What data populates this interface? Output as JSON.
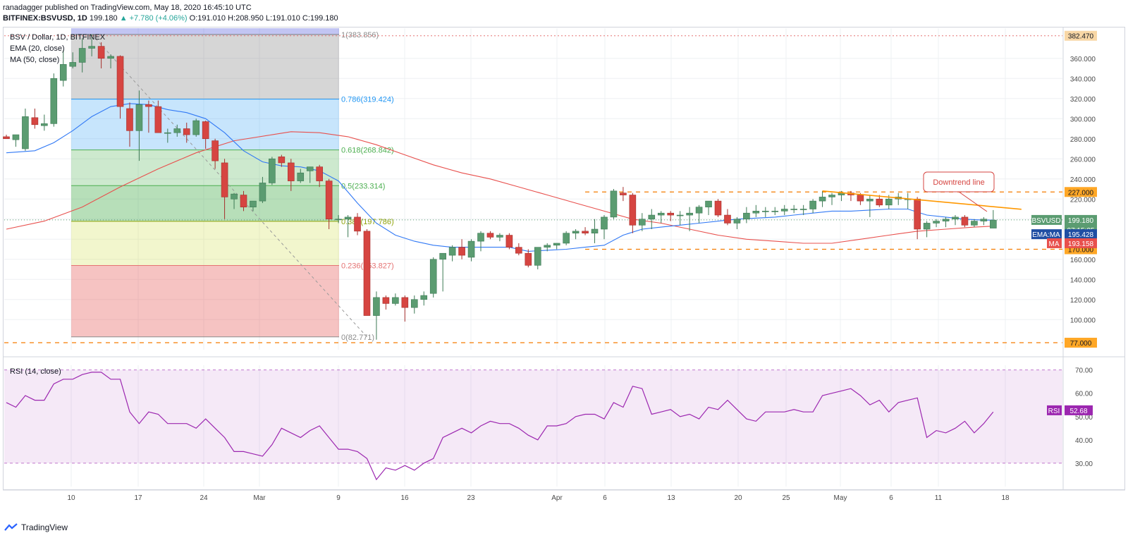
{
  "header": {
    "line1": "ranadagger published on TradingView.com, May 18, 2020 16:45:10 UTC",
    "symbol": "BITFINEX:BSVUSD, 1D",
    "close_val": "199.180",
    "change": "▲ +7.780 (+4.06%)",
    "ohlc": "O:191.010 H:208.950 L:191.010 C:199.180"
  },
  "legend": {
    "title": "BSV / Dollar, 1D, BITFINEX",
    "ema": "EMA (20, close)",
    "ma": "MA (50, close)",
    "rsi": "RSI (14, close)"
  },
  "annotation": "Downtrend line",
  "footer": {
    "brand": "TradingView"
  },
  "colors": {
    "up": "#5b9c71",
    "down": "#d64541",
    "ema": "#3179f5",
    "ma": "#e8504d",
    "trendline": "#ff9800",
    "support": "#f57c00",
    "rsi": "#9c27b0",
    "fib_gray": "#a6a6a6",
    "fib_blue": "#2196f3"
  },
  "chart_data": {
    "type": "candlestick",
    "price_axis": {
      "min": 70,
      "max": 390,
      "ticks": [
        100,
        120,
        140,
        160,
        180,
        200,
        220,
        240,
        260,
        280,
        300,
        320,
        340,
        360
      ]
    },
    "date_ticks": [
      "10",
      "17",
      "24",
      "Mar",
      "9",
      "16",
      "23",
      "Apr",
      "6",
      "13",
      "20",
      "25",
      "May",
      "6",
      "11",
      "18"
    ],
    "fibonacci": [
      {
        "label": "1(383.856)",
        "value": 383.856
      },
      {
        "label": "0.786(319.424)",
        "value": 319.424
      },
      {
        "label": "0.618(268.842)",
        "value": 268.842
      },
      {
        "label": "0.5(233.314)",
        "value": 233.314
      },
      {
        "label": "0.382(197.786)",
        "value": 197.786
      },
      {
        "label": "0.236(153.827)",
        "value": 153.827
      },
      {
        "label": "0(82.771)",
        "value": 82.771
      }
    ],
    "levels": [
      {
        "label": "382.470",
        "value": 382.47
      },
      {
        "label": "227.000",
        "value": 227
      },
      {
        "label": "170.000",
        "value": 170
      },
      {
        "label": "77.000",
        "value": 77
      }
    ],
    "price_labels": {
      "symbol": "BSVUSD",
      "last": "199.180",
      "countdown": "07:15:05",
      "ema_tag": "EMA:MA",
      "ema_value": "195.428",
      "ma_tag": "MA",
      "ma_value": "193.158"
    },
    "candles": [
      [
        0,
        282,
        284,
        280,
        280
      ],
      [
        1,
        279,
        282,
        272,
        284
      ],
      [
        2,
        270,
        310,
        268,
        302
      ],
      [
        3,
        301,
        310,
        290,
        294
      ],
      [
        4,
        293,
        304,
        288,
        295
      ],
      [
        5,
        295,
        345,
        292,
        340
      ],
      [
        6,
        338,
        368,
        332,
        354
      ],
      [
        7,
        352,
        366,
        350,
        356
      ],
      [
        8,
        356,
        380,
        346,
        370
      ],
      [
        9,
        370,
        384,
        362,
        372
      ],
      [
        10,
        372,
        376,
        350,
        360
      ],
      [
        11,
        360,
        364,
        350,
        362
      ],
      [
        12,
        362,
        363,
        300,
        312
      ],
      [
        13,
        310,
        316,
        272,
        288
      ],
      [
        14,
        288,
        328,
        258,
        314
      ],
      [
        15,
        314,
        318,
        286,
        312
      ],
      [
        16,
        312,
        318,
        288,
        286
      ],
      [
        17,
        286,
        290,
        276,
        286
      ],
      [
        18,
        286,
        294,
        282,
        290
      ],
      [
        19,
        290,
        296,
        276,
        284
      ],
      [
        20,
        284,
        300,
        282,
        298
      ],
      [
        21,
        297,
        298,
        270,
        280
      ],
      [
        22,
        278,
        280,
        250,
        258
      ],
      [
        23,
        256,
        260,
        200,
        222
      ],
      [
        24,
        220,
        226,
        210,
        225
      ],
      [
        25,
        224,
        228,
        208,
        212
      ],
      [
        26,
        212,
        218,
        208,
        218
      ],
      [
        27,
        218,
        242,
        216,
        236
      ],
      [
        28,
        236,
        262,
        234,
        260
      ],
      [
        29,
        262,
        264,
        252,
        256
      ],
      [
        30,
        256,
        260,
        228,
        238
      ],
      [
        31,
        238,
        250,
        236,
        246
      ],
      [
        32,
        248,
        252,
        236,
        252
      ],
      [
        33,
        252,
        254,
        232,
        238
      ],
      [
        34,
        238,
        240,
        190,
        200
      ],
      [
        35,
        200,
        204,
        196,
        200
      ],
      [
        36,
        200,
        204,
        182,
        202
      ],
      [
        37,
        202,
        206,
        184,
        188
      ],
      [
        38,
        188,
        190,
        104,
        104
      ],
      [
        39,
        104,
        128,
        80,
        122
      ],
      [
        40,
        122,
        124,
        110,
        116
      ],
      [
        41,
        116,
        126,
        114,
        122
      ],
      [
        42,
        122,
        124,
        98,
        112
      ],
      [
        43,
        112,
        124,
        106,
        120
      ],
      [
        44,
        120,
        128,
        114,
        124
      ],
      [
        45,
        126,
        162,
        122,
        160
      ],
      [
        46,
        160,
        164,
        128,
        166
      ],
      [
        47,
        164,
        174,
        158,
        172
      ],
      [
        48,
        172,
        180,
        160,
        164
      ],
      [
        49,
        162,
        180,
        158,
        178
      ],
      [
        50,
        178,
        188,
        168,
        186
      ],
      [
        51,
        186,
        188,
        180,
        182
      ],
      [
        52,
        182,
        186,
        178,
        184
      ],
      [
        53,
        184,
        186,
        170,
        172
      ],
      [
        54,
        172,
        176,
        164,
        166
      ],
      [
        55,
        166,
        170,
        152,
        154
      ],
      [
        56,
        154,
        170,
        150,
        172
      ],
      [
        57,
        172,
        176,
        168,
        174
      ],
      [
        58,
        174,
        176,
        170,
        176
      ],
      [
        59,
        176,
        188,
        174,
        186
      ],
      [
        60,
        186,
        190,
        180,
        188
      ],
      [
        61,
        188,
        192,
        184,
        186
      ],
      [
        62,
        186,
        200,
        176,
        190
      ],
      [
        63,
        190,
        204,
        180,
        202
      ],
      [
        64,
        202,
        230,
        200,
        228
      ],
      [
        65,
        226,
        232,
        218,
        224
      ],
      [
        66,
        224,
        226,
        186,
        194
      ],
      [
        67,
        194,
        206,
        188,
        200
      ],
      [
        68,
        200,
        210,
        190,
        204
      ],
      [
        69,
        204,
        208,
        196,
        206
      ],
      [
        70,
        206,
        208,
        198,
        204
      ],
      [
        71,
        204,
        208,
        194,
        204
      ],
      [
        72,
        204,
        212,
        188,
        206
      ],
      [
        73,
        206,
        214,
        196,
        212
      ],
      [
        74,
        212,
        218,
        204,
        218
      ],
      [
        75,
        218,
        220,
        202,
        204
      ],
      [
        76,
        204,
        210,
        194,
        196
      ],
      [
        77,
        196,
        202,
        190,
        200
      ],
      [
        78,
        200,
        212,
        196,
        206
      ],
      [
        79,
        206,
        214,
        202,
        208
      ],
      [
        80,
        208,
        212,
        202,
        208
      ],
      [
        81,
        208,
        212,
        204,
        208
      ],
      [
        82,
        208,
        214,
        204,
        210
      ],
      [
        83,
        210,
        214,
        206,
        210
      ],
      [
        84,
        210,
        214,
        204,
        210
      ],
      [
        85,
        210,
        220,
        206,
        218
      ],
      [
        86,
        218,
        228,
        212,
        222
      ],
      [
        87,
        222,
        226,
        214,
        224
      ],
      [
        88,
        224,
        228,
        218,
        226
      ],
      [
        89,
        226,
        228,
        218,
        224
      ],
      [
        90,
        224,
        226,
        214,
        218
      ],
      [
        91,
        218,
        224,
        202,
        220
      ],
      [
        92,
        220,
        224,
        212,
        214
      ],
      [
        93,
        214,
        224,
        210,
        220
      ],
      [
        94,
        220,
        226,
        214,
        222
      ],
      [
        95,
        220,
        226,
        210,
        220
      ],
      [
        96,
        220,
        222,
        180,
        190
      ],
      [
        97,
        190,
        198,
        182,
        196
      ],
      [
        98,
        196,
        200,
        192,
        198
      ],
      [
        99,
        198,
        202,
        192,
        200
      ],
      [
        100,
        200,
        204,
        194,
        202
      ],
      [
        101,
        202,
        204,
        192,
        194
      ],
      [
        102,
        194,
        200,
        192,
        198
      ],
      [
        103,
        198,
        202,
        194,
        200
      ],
      [
        104,
        191,
        209,
        191,
        199
      ]
    ],
    "ema20": [
      [
        0,
        266
      ],
      [
        3,
        268
      ],
      [
        5,
        276
      ],
      [
        7,
        288
      ],
      [
        9,
        302
      ],
      [
        11,
        312
      ],
      [
        13,
        315
      ],
      [
        15,
        314
      ],
      [
        17,
        309
      ],
      [
        19,
        306
      ],
      [
        21,
        300
      ],
      [
        23,
        286
      ],
      [
        25,
        268
      ],
      [
        27,
        257
      ],
      [
        29,
        253
      ],
      [
        31,
        252
      ],
      [
        33,
        248
      ],
      [
        35,
        238
      ],
      [
        37,
        216
      ],
      [
        39,
        196
      ],
      [
        41,
        184
      ],
      [
        43,
        178
      ],
      [
        45,
        174
      ],
      [
        47,
        172
      ],
      [
        49,
        172
      ],
      [
        51,
        172
      ],
      [
        53,
        172
      ],
      [
        55,
        168
      ],
      [
        57,
        169
      ],
      [
        59,
        170
      ],
      [
        61,
        172
      ],
      [
        63,
        174
      ],
      [
        65,
        184
      ],
      [
        67,
        190
      ],
      [
        69,
        192
      ],
      [
        71,
        194
      ],
      [
        73,
        196
      ],
      [
        75,
        198
      ],
      [
        77,
        200
      ],
      [
        79,
        201
      ],
      [
        81,
        202
      ],
      [
        83,
        204
      ],
      [
        85,
        206
      ],
      [
        87,
        208
      ],
      [
        89,
        208
      ],
      [
        91,
        209
      ],
      [
        93,
        210
      ],
      [
        95,
        210
      ],
      [
        97,
        204
      ],
      [
        99,
        202
      ],
      [
        101,
        200
      ],
      [
        103,
        199
      ],
      [
        104,
        199
      ]
    ],
    "ma50": [
      [
        0,
        190
      ],
      [
        4,
        198
      ],
      [
        8,
        212
      ],
      [
        12,
        232
      ],
      [
        16,
        250
      ],
      [
        20,
        266
      ],
      [
        24,
        278
      ],
      [
        28,
        284
      ],
      [
        30,
        287
      ],
      [
        33,
        286
      ],
      [
        36,
        282
      ],
      [
        39,
        274
      ],
      [
        42,
        264
      ],
      [
        45,
        254
      ],
      [
        48,
        246
      ],
      [
        51,
        240
      ],
      [
        54,
        232
      ],
      [
        57,
        224
      ],
      [
        60,
        216
      ],
      [
        63,
        208
      ],
      [
        66,
        200
      ],
      [
        69,
        196
      ],
      [
        72,
        190
      ],
      [
        75,
        184
      ],
      [
        78,
        180
      ],
      [
        81,
        178
      ],
      [
        84,
        176
      ],
      [
        87,
        176
      ],
      [
        90,
        180
      ],
      [
        93,
        184
      ],
      [
        96,
        188
      ],
      [
        99,
        190
      ],
      [
        102,
        192
      ],
      [
        104,
        193
      ]
    ],
    "trendline": [
      [
        86,
        228
      ],
      [
        104,
        207
      ]
    ],
    "rsi": {
      "min": 20,
      "max": 72,
      "ticks": [
        30,
        40,
        50,
        60,
        70
      ],
      "bands": [
        30,
        70
      ],
      "label": "RSI",
      "last": "52.68",
      "values": [
        [
          0,
          56
        ],
        [
          1,
          54
        ],
        [
          2,
          59
        ],
        [
          3,
          57
        ],
        [
          4,
          57
        ],
        [
          5,
          64
        ],
        [
          6,
          66
        ],
        [
          7,
          66
        ],
        [
          8,
          68
        ],
        [
          9,
          69
        ],
        [
          10,
          69
        ],
        [
          11,
          66
        ],
        [
          12,
          66
        ],
        [
          13,
          52
        ],
        [
          14,
          47
        ],
        [
          15,
          52
        ],
        [
          16,
          51
        ],
        [
          17,
          47
        ],
        [
          18,
          47
        ],
        [
          19,
          47
        ],
        [
          20,
          45
        ],
        [
          21,
          49
        ],
        [
          22,
          45
        ],
        [
          23,
          41
        ],
        [
          24,
          35
        ],
        [
          25,
          35
        ],
        [
          26,
          34
        ],
        [
          27,
          33
        ],
        [
          28,
          38
        ],
        [
          29,
          45
        ],
        [
          30,
          43
        ],
        [
          31,
          41
        ],
        [
          32,
          44
        ],
        [
          33,
          46
        ],
        [
          34,
          41
        ],
        [
          35,
          36
        ],
        [
          36,
          36
        ],
        [
          37,
          35
        ],
        [
          38,
          32
        ],
        [
          39,
          23
        ],
        [
          40,
          28
        ],
        [
          41,
          27
        ],
        [
          42,
          29
        ],
        [
          43,
          27
        ],
        [
          44,
          30
        ],
        [
          45,
          32
        ],
        [
          46,
          41
        ],
        [
          47,
          43
        ],
        [
          48,
          45
        ],
        [
          49,
          43
        ],
        [
          50,
          46
        ],
        [
          51,
          48
        ],
        [
          52,
          47
        ],
        [
          53,
          47
        ],
        [
          54,
          45
        ],
        [
          55,
          42
        ],
        [
          56,
          40
        ],
        [
          57,
          46
        ],
        [
          58,
          46
        ],
        [
          59,
          47
        ],
        [
          60,
          50
        ],
        [
          61,
          51
        ],
        [
          62,
          51
        ],
        [
          63,
          49
        ],
        [
          64,
          56
        ],
        [
          65,
          54
        ],
        [
          66,
          63
        ],
        [
          67,
          62
        ],
        [
          68,
          51
        ],
        [
          69,
          52
        ],
        [
          70,
          53
        ],
        [
          71,
          50
        ],
        [
          72,
          51
        ],
        [
          73,
          49
        ],
        [
          74,
          54
        ],
        [
          75,
          53
        ],
        [
          76,
          57
        ],
        [
          77,
          53
        ],
        [
          78,
          49
        ],
        [
          79,
          48
        ],
        [
          80,
          52
        ],
        [
          81,
          52
        ],
        [
          82,
          52
        ],
        [
          83,
          53
        ],
        [
          84,
          52
        ],
        [
          85,
          52
        ],
        [
          86,
          59
        ],
        [
          87,
          60
        ],
        [
          88,
          61
        ],
        [
          89,
          62
        ],
        [
          90,
          59
        ],
        [
          91,
          55
        ],
        [
          92,
          57
        ],
        [
          93,
          52
        ],
        [
          94,
          56
        ],
        [
          95,
          57
        ],
        [
          96,
          58
        ],
        [
          97,
          41
        ],
        [
          98,
          44
        ],
        [
          99,
          43
        ],
        [
          100,
          45
        ],
        [
          101,
          48
        ],
        [
          102,
          43
        ],
        [
          103,
          47
        ],
        [
          104,
          52
        ]
      ]
    }
  }
}
